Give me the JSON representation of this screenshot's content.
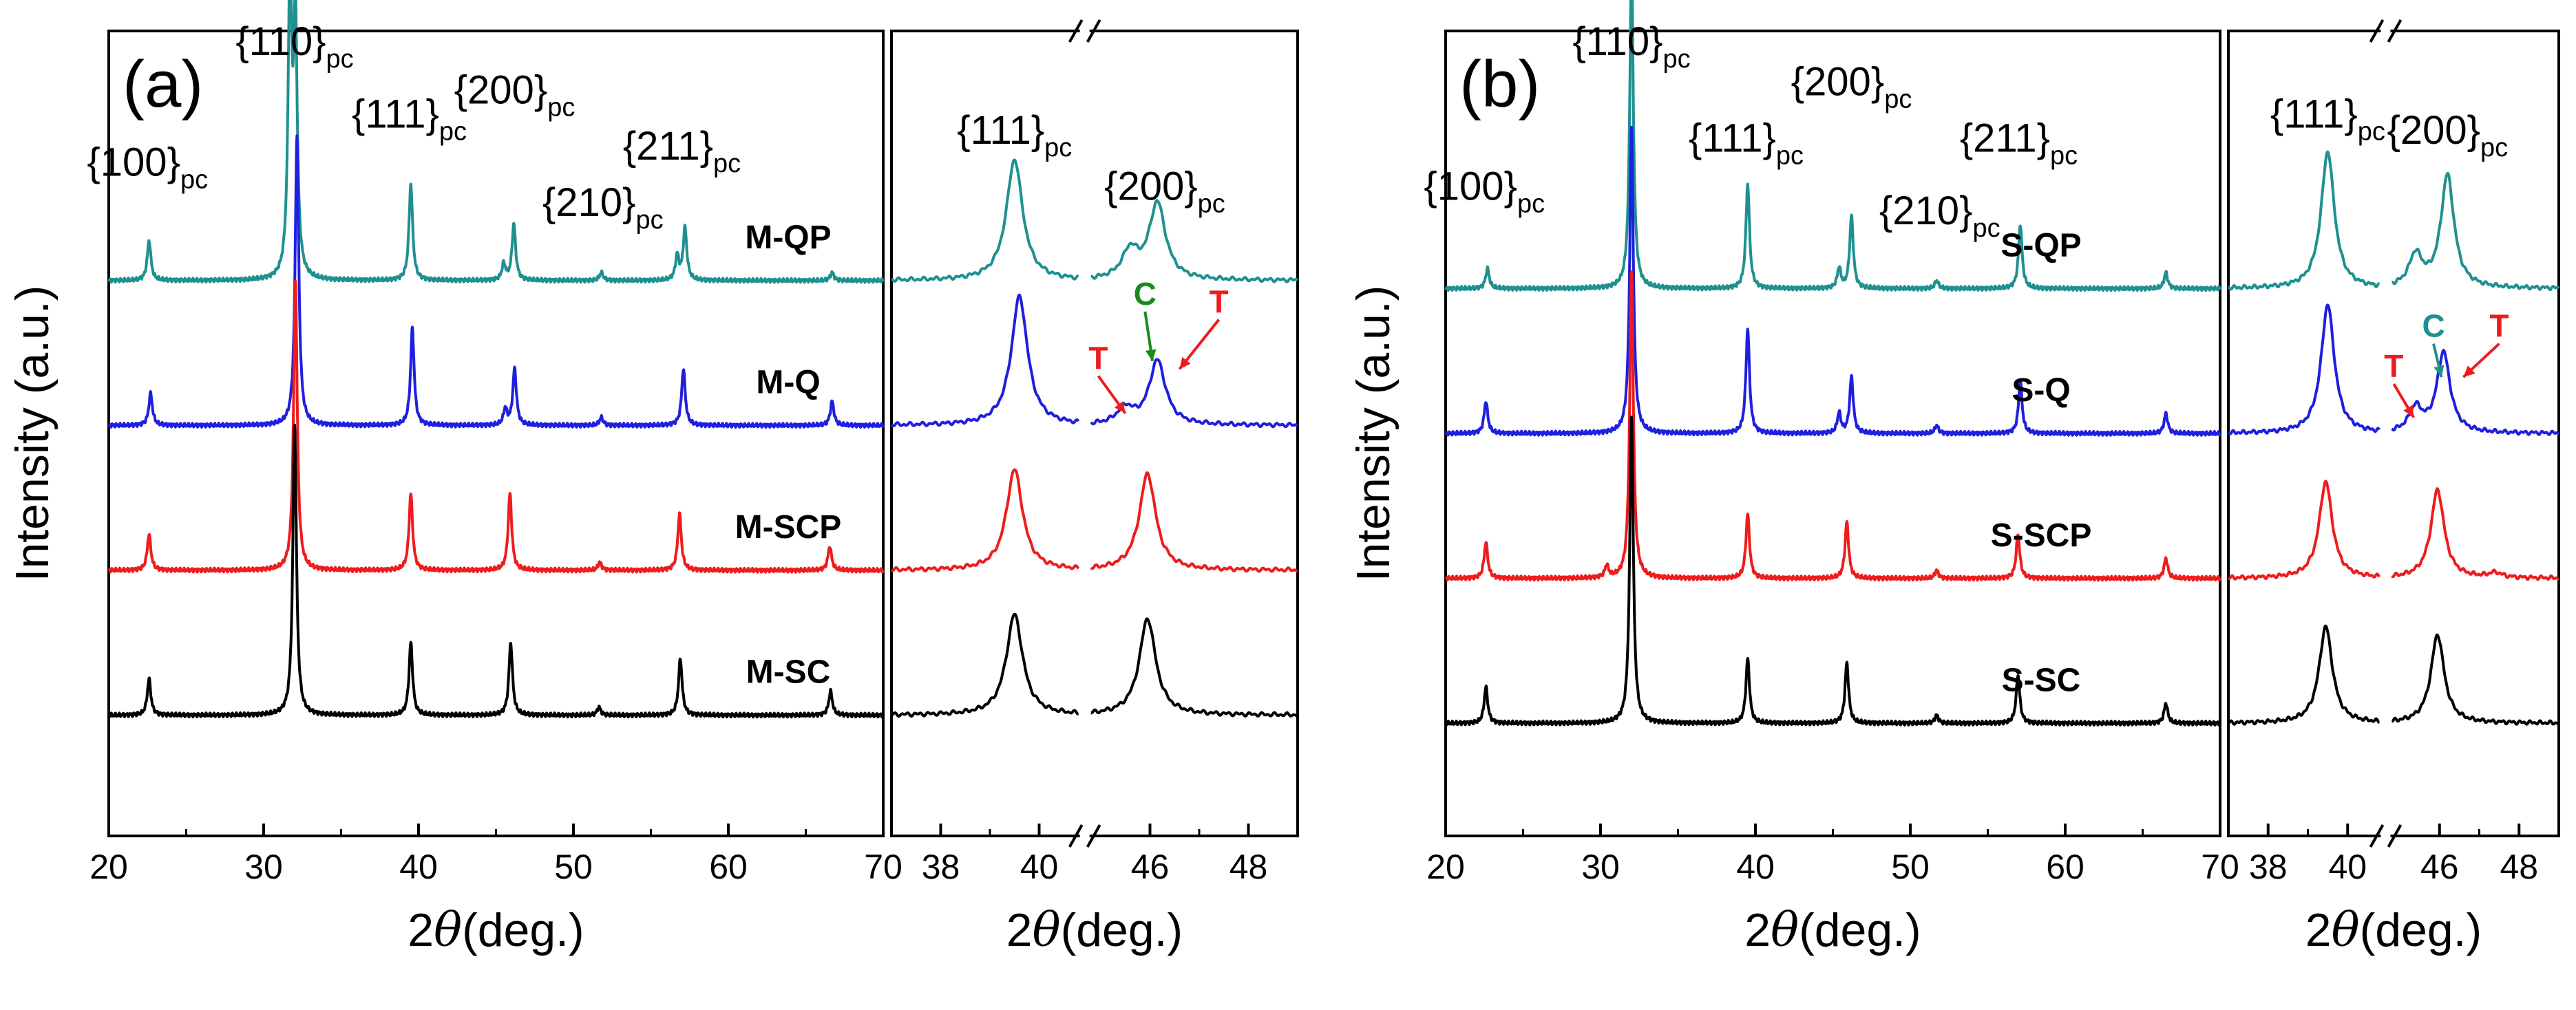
{
  "chart_data": [
    {
      "id": "a-full",
      "type": "line",
      "panel_label": "(a)",
      "ylabel": "Intensity (a.u.)",
      "xlabel_symbol": "2",
      "xlabel_theta": "θ",
      "xlabel_unit": "(deg.)",
      "xlim": [
        20,
        70
      ],
      "ylim": [
        0,
        100
      ],
      "xticks": [
        20,
        30,
        40,
        50,
        60,
        70
      ],
      "series": [
        {
          "name": "M-QP",
          "color": "#1f9090",
          "baseline": 69,
          "peaks": [
            [
              22.6,
              5
            ],
            [
              31.7,
              38
            ],
            [
              32.05,
              31
            ],
            [
              39.5,
              12
            ],
            [
              45.5,
              2
            ],
            [
              46.15,
              7
            ],
            [
              51.8,
              1
            ],
            [
              56.7,
              3
            ],
            [
              57.2,
              6.5
            ],
            [
              66.7,
              1
            ]
          ]
        },
        {
          "name": "M-Q",
          "color": "#1f1fe0",
          "baseline": 51,
          "peaks": [
            [
              22.7,
              4
            ],
            [
              32.15,
              36
            ],
            [
              39.6,
              12
            ],
            [
              45.6,
              2
            ],
            [
              46.2,
              7
            ],
            [
              51.8,
              1
            ],
            [
              57.1,
              7
            ],
            [
              66.7,
              3
            ]
          ]
        },
        {
          "name": "M-SCP",
          "color": "#ee1c1c",
          "baseline": 33,
          "peaks": [
            [
              22.6,
              4.5
            ],
            [
              32.05,
              36
            ],
            [
              39.5,
              9.5
            ],
            [
              45.9,
              9.5
            ],
            [
              51.7,
              1
            ],
            [
              56.85,
              7
            ],
            [
              66.55,
              3
            ]
          ]
        },
        {
          "name": "M-SC",
          "color": "#000000",
          "baseline": 15,
          "peaks": [
            [
              22.6,
              4.5
            ],
            [
              32.0,
              36
            ],
            [
              39.5,
              9
            ],
            [
              45.95,
              9
            ],
            [
              51.65,
              1
            ],
            [
              56.9,
              7
            ],
            [
              66.6,
              3
            ]
          ]
        }
      ],
      "annotations": [
        {
          "label": "{100}",
          "sub": "pc",
          "x": 22.5,
          "y": 82
        },
        {
          "label": "{110}",
          "sub": "pc",
          "x": 32.0,
          "y": 97
        },
        {
          "label": "{111}",
          "sub": "pc",
          "x": 39.4,
          "y": 88
        },
        {
          "label": "{200}",
          "sub": "pc",
          "x": 46.2,
          "y": 91
        },
        {
          "label": "{210}",
          "sub": "pc",
          "x": 51.9,
          "y": 77
        },
        {
          "label": "{211}",
          "sub": "pc",
          "x": 57.0,
          "y": 84
        }
      ]
    },
    {
      "id": "a-zoom",
      "type": "line",
      "xlabel_symbol": "2",
      "xlabel_theta": "θ",
      "xlabel_unit": "(deg.)",
      "xlim": [
        37,
        49
      ],
      "ylim": [
        0,
        100
      ],
      "axis_break": [
        40.8,
        44.8
      ],
      "break_mark": "//",
      "xticks": [
        38,
        40,
        46,
        48
      ],
      "series": [
        {
          "name": "M-QP",
          "color": "#1f9090",
          "baseline": 69,
          "peaks": [
            [
              39.5,
              15
            ],
            [
              45.6,
              3.5
            ],
            [
              46.15,
              9.5
            ]
          ]
        },
        {
          "name": "M-Q",
          "color": "#1f1fe0",
          "baseline": 51,
          "peaks": [
            [
              39.6,
              16
            ],
            [
              45.5,
              2
            ],
            [
              46.15,
              8
            ]
          ]
        },
        {
          "name": "M-SCP",
          "color": "#ee1c1c",
          "baseline": 33,
          "peaks": [
            [
              39.5,
              12.5
            ],
            [
              45.95,
              12
            ]
          ]
        },
        {
          "name": "M-SC",
          "color": "#000000",
          "baseline": 15,
          "peaks": [
            [
              39.5,
              12.5
            ],
            [
              45.95,
              12
            ]
          ]
        }
      ],
      "annotations": [
        {
          "label": "{111}",
          "sub": "pc",
          "x": 39.5,
          "y": 86
        },
        {
          "label": "{200}",
          "sub": "pc",
          "x": 46.3,
          "y": 79
        }
      ],
      "markers": [
        {
          "label": "T",
          "color": "#ee1c1c",
          "x": 44.95,
          "y": 58,
          "to_x": 45.5,
          "to_y": 52.5
        },
        {
          "label": "C",
          "color": "#1a8a1a",
          "x": 45.9,
          "y": 66,
          "to_x": 46.05,
          "to_y": 59
        },
        {
          "label": "T",
          "color": "#ee1c1c",
          "x": 47.4,
          "y": 65,
          "to_x": 46.6,
          "to_y": 58
        }
      ]
    },
    {
      "id": "b-full",
      "type": "line",
      "panel_label": "(b)",
      "ylabel": "Intensity (a.u.)",
      "xlabel_symbol": "2",
      "xlabel_theta": "θ",
      "xlabel_unit": "(deg.)",
      "xlim": [
        20,
        70
      ],
      "ylim": [
        0,
        100
      ],
      "xticks": [
        20,
        30,
        40,
        50,
        60,
        70
      ],
      "series": [
        {
          "name": "S-QP",
          "color": "#1f9090",
          "baseline": 68,
          "peaks": [
            [
              22.7,
              2.5
            ],
            [
              32.0,
              40
            ],
            [
              39.5,
              13
            ],
            [
              45.4,
              2.5
            ],
            [
              46.2,
              9
            ],
            [
              51.7,
              1
            ],
            [
              57.1,
              8
            ],
            [
              66.5,
              2
            ]
          ]
        },
        {
          "name": "S-Q",
          "color": "#1f1fe0",
          "baseline": 50,
          "peaks": [
            [
              22.6,
              4
            ],
            [
              32.0,
              38
            ],
            [
              39.5,
              13
            ],
            [
              45.4,
              2.5
            ],
            [
              46.2,
              7
            ],
            [
              51.7,
              1
            ],
            [
              57.1,
              6.5
            ],
            [
              66.5,
              2.5
            ]
          ]
        },
        {
          "name": "S-SCP",
          "color": "#ee1c1c",
          "baseline": 32,
          "peaks": [
            [
              22.6,
              4.5
            ],
            [
              30.4,
              1.5
            ],
            [
              32.0,
              38
            ],
            [
              39.5,
              8
            ],
            [
              45.9,
              7
            ],
            [
              51.7,
              1
            ],
            [
              56.95,
              5.5
            ],
            [
              66.5,
              2.5
            ]
          ]
        },
        {
          "name": "S-SC",
          "color": "#000000",
          "baseline": 14,
          "peaks": [
            [
              22.6,
              4.5
            ],
            [
              32.0,
              38
            ],
            [
              39.5,
              8
            ],
            [
              45.9,
              7.5
            ],
            [
              51.7,
              1
            ],
            [
              56.95,
              6
            ],
            [
              66.5,
              2.5
            ]
          ]
        }
      ],
      "annotations": [
        {
          "label": "{100}",
          "sub": "pc",
          "x": 22.5,
          "y": 79
        },
        {
          "label": "{110}",
          "sub": "pc",
          "x": 32.0,
          "y": 97
        },
        {
          "label": "{111}",
          "sub": "pc",
          "x": 39.4,
          "y": 85
        },
        {
          "label": "{200}",
          "sub": "pc",
          "x": 46.2,
          "y": 92
        },
        {
          "label": "{210}",
          "sub": "pc",
          "x": 51.9,
          "y": 76
        },
        {
          "label": "{211}",
          "sub": "pc",
          "x": 57.0,
          "y": 85
        }
      ]
    },
    {
      "id": "b-zoom",
      "type": "line",
      "xlabel_symbol": "2",
      "xlabel_theta": "θ",
      "xlabel_unit": "(deg.)",
      "xlim": [
        37,
        49
      ],
      "ylim": [
        0,
        100
      ],
      "axis_break": [
        40.8,
        44.8
      ],
      "break_mark": "//",
      "xticks": [
        38,
        40,
        46,
        48
      ],
      "series": [
        {
          "name": "S-QP",
          "color": "#1f9090",
          "baseline": 68,
          "peaks": [
            [
              39.5,
              17
            ],
            [
              45.4,
              4
            ],
            [
              46.2,
              14
            ]
          ]
        },
        {
          "name": "S-Q",
          "color": "#1f1fe0",
          "baseline": 50,
          "peaks": [
            [
              39.5,
              16
            ],
            [
              45.4,
              3
            ],
            [
              46.1,
              10
            ]
          ]
        },
        {
          "name": "S-SCP",
          "color": "#ee1c1c",
          "baseline": 32,
          "peaks": [
            [
              39.45,
              12
            ],
            [
              45.95,
              11
            ],
            [
              47.4,
              0.6
            ]
          ]
        },
        {
          "name": "S-SC",
          "color": "#000000",
          "baseline": 14,
          "peaks": [
            [
              39.45,
              12
            ],
            [
              45.95,
              11
            ]
          ]
        }
      ],
      "annotations": [
        {
          "label": "{111}",
          "sub": "pc",
          "x": 39.5,
          "y": 88
        },
        {
          "label": "{200}",
          "sub": "pc",
          "x": 46.2,
          "y": 86
        }
      ],
      "markers": [
        {
          "label": "T",
          "color": "#ee1c1c",
          "x": 44.85,
          "y": 57,
          "to_x": 45.35,
          "to_y": 52
        },
        {
          "label": "C",
          "color": "#1f9090",
          "x": 45.85,
          "y": 62,
          "to_x": 46.05,
          "to_y": 57
        },
        {
          "label": "T",
          "color": "#ee1c1c",
          "x": 47.5,
          "y": 62,
          "to_x": 46.6,
          "to_y": 57
        }
      ]
    }
  ]
}
